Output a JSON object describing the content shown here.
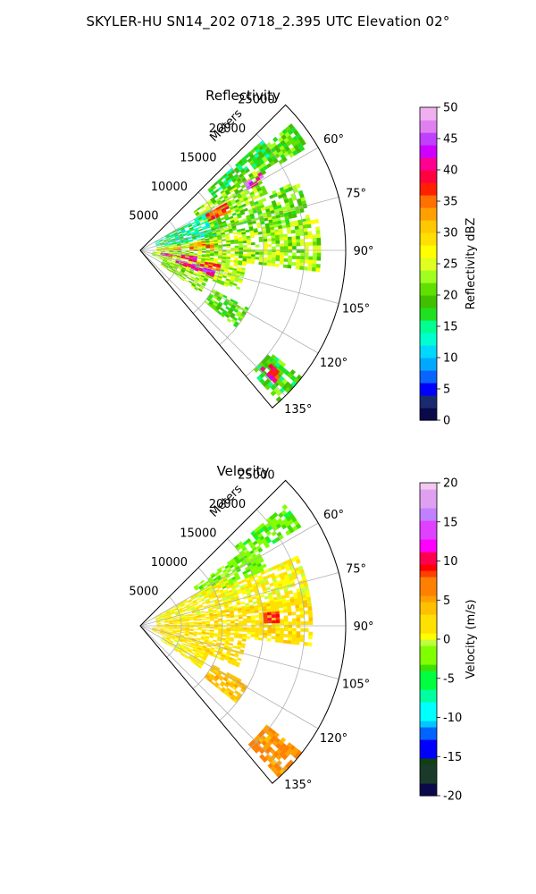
{
  "figure_title": "SKYLER-HU  SN14_202  0718_2.395 UTC Elevation 02°",
  "chart_data": [
    {
      "type": "heatmap",
      "projection": "polar-sector",
      "title": "Reflectivity",
      "radial_label": "Meters",
      "radial_ticks": [
        5000,
        10000,
        15000,
        20000,
        25000
      ],
      "rmax": 25000,
      "azimuth_range_deg": [
        45,
        140
      ],
      "azimuth_ticks": [
        {
          "deg": 60,
          "label": "60°"
        },
        {
          "deg": 75,
          "label": "75°"
        },
        {
          "deg": 90,
          "label": "90°"
        },
        {
          "deg": 105,
          "label": "105°"
        },
        {
          "deg": 120,
          "label": "120°"
        },
        {
          "deg": 135,
          "label": "135°"
        }
      ],
      "colorbar": {
        "label": "Reflectivity dBZ",
        "range": [
          0,
          50
        ],
        "ticks": [
          0,
          5,
          10,
          15,
          20,
          25,
          30,
          35,
          40,
          45,
          50
        ]
      },
      "grid": true,
      "echoes": [
        {
          "az": [
            50,
            58
          ],
          "r": [
            17000,
            24000
          ],
          "v": 20
        },
        {
          "az": [
            48,
            54
          ],
          "r": [
            11000,
            20000
          ],
          "v": 17
        },
        {
          "az": [
            54,
            66
          ],
          "r": [
            8000,
            17000
          ],
          "v": 22
        },
        {
          "az": [
            60,
            80
          ],
          "r": [
            2000,
            10000
          ],
          "v": 15
        },
        {
          "az": [
            66,
            80
          ],
          "r": [
            9000,
            21000
          ],
          "v": 21
        },
        {
          "az": [
            80,
            96
          ],
          "r": [
            2000,
            22000
          ],
          "v": 23
        },
        {
          "az": [
            96,
            112
          ],
          "r": [
            1500,
            13000
          ],
          "v": 24
        },
        {
          "az": [
            112,
            125
          ],
          "r": [
            3000,
            9000
          ],
          "v": 22
        },
        {
          "az": [
            118,
            128
          ],
          "r": [
            10000,
            15000
          ],
          "v": 20
        },
        {
          "az": [
            128,
            137
          ],
          "r": [
            20000,
            25000
          ],
          "v": 19
        },
        {
          "az": [
            57,
            60
          ],
          "r": [
            15000,
            17500
          ],
          "v": 44
        },
        {
          "az": [
            61,
            66
          ],
          "r": [
            9000,
            12000
          ],
          "v": 37
        },
        {
          "az": [
            82,
            90
          ],
          "r": [
            6000,
            9000
          ],
          "v": 34
        },
        {
          "az": [
            96,
            101
          ],
          "r": [
            2500,
            7000
          ],
          "v": 41
        },
        {
          "az": [
            104,
            110
          ],
          "r": [
            4500,
            9500
          ],
          "v": 42
        },
        {
          "az": [
            100,
            104
          ],
          "r": [
            7000,
            10000
          ],
          "v": 36
        },
        {
          "az": [
            131,
            134
          ],
          "r": [
            20500,
            23000
          ],
          "v": 39
        },
        {
          "az": [
            85,
            89
          ],
          "r": [
            2000,
            5000
          ],
          "v": 33
        }
      ]
    },
    {
      "type": "heatmap",
      "projection": "polar-sector",
      "title": "Velocity",
      "radial_label": "Meters",
      "radial_ticks": [
        5000,
        10000,
        15000,
        20000,
        25000
      ],
      "rmax": 25000,
      "azimuth_range_deg": [
        45,
        140
      ],
      "azimuth_ticks": [
        {
          "deg": 60,
          "label": "60°"
        },
        {
          "deg": 75,
          "label": "75°"
        },
        {
          "deg": 90,
          "label": "90°"
        },
        {
          "deg": 105,
          "label": "105°"
        },
        {
          "deg": 120,
          "label": "120°"
        },
        {
          "deg": 135,
          "label": "135°"
        }
      ],
      "colorbar": {
        "label": "Velocity (m/s)",
        "range": [
          -20,
          20
        ],
        "ticks": [
          -20,
          -15,
          -10,
          -5,
          0,
          5,
          10,
          15,
          20
        ]
      },
      "grid": true,
      "echoes": [
        {
          "az": [
            50,
            58
          ],
          "r": [
            15000,
            23000
          ],
          "v": -3
        },
        {
          "az": [
            54,
            66
          ],
          "r": [
            8000,
            17000
          ],
          "v": -2
        },
        {
          "az": [
            60,
            80
          ],
          "r": [
            2000,
            12000
          ],
          "v": 1
        },
        {
          "az": [
            66,
            82
          ],
          "r": [
            12000,
            21000
          ],
          "v": 1
        },
        {
          "az": [
            80,
            96
          ],
          "r": [
            2000,
            21000
          ],
          "v": 2
        },
        {
          "az": [
            96,
            112
          ],
          "r": [
            1500,
            13000
          ],
          "v": 2
        },
        {
          "az": [
            112,
            125
          ],
          "r": [
            3000,
            9000
          ],
          "v": 1
        },
        {
          "az": [
            118,
            128
          ],
          "r": [
            10000,
            15000
          ],
          "v": 4
        },
        {
          "az": [
            128,
            137
          ],
          "r": [
            19500,
            25000
          ],
          "v": 6
        },
        {
          "az": [
            84,
            88
          ],
          "r": [
            15000,
            17000
          ],
          "v": 9
        }
      ]
    }
  ]
}
